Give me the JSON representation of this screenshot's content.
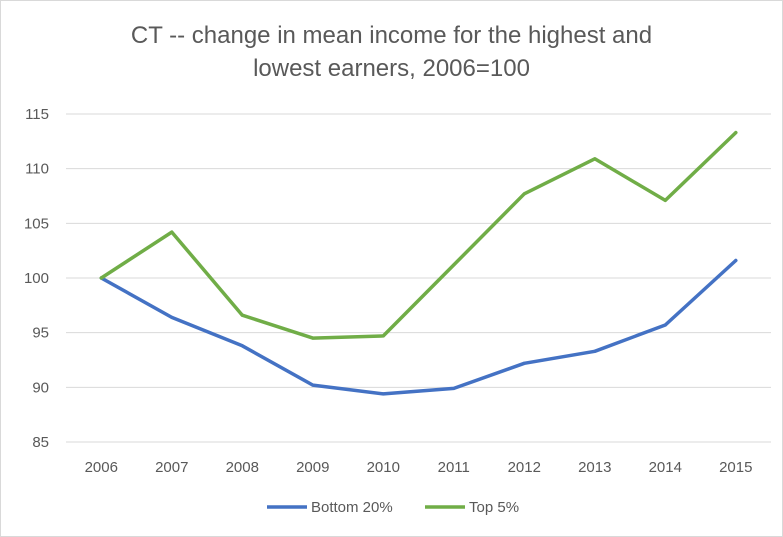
{
  "chart_data": {
    "type": "line",
    "title_lines": [
      "CT -- change in mean income for the highest and",
      "lowest earners, 2006=100"
    ],
    "x": [
      "2006",
      "2007",
      "2008",
      "2009",
      "2010",
      "2011",
      "2012",
      "2013",
      "2014",
      "2015"
    ],
    "series": [
      {
        "name": "Bottom 20%",
        "color": "#4472c4",
        "values": [
          100,
          96.4,
          93.8,
          90.2,
          89.4,
          89.9,
          92.2,
          93.3,
          95.7,
          101.6
        ]
      },
      {
        "name": "Top 5%",
        "color": "#70ad47",
        "values": [
          100,
          104.2,
          96.6,
          94.5,
          94.7,
          101.2,
          107.7,
          110.9,
          107.1,
          113.3
        ]
      }
    ],
    "ylim": [
      85,
      115
    ],
    "yticks": [
      85,
      90,
      95,
      100,
      105,
      110,
      115
    ],
    "grid": true,
    "legend_position": "bottom"
  }
}
